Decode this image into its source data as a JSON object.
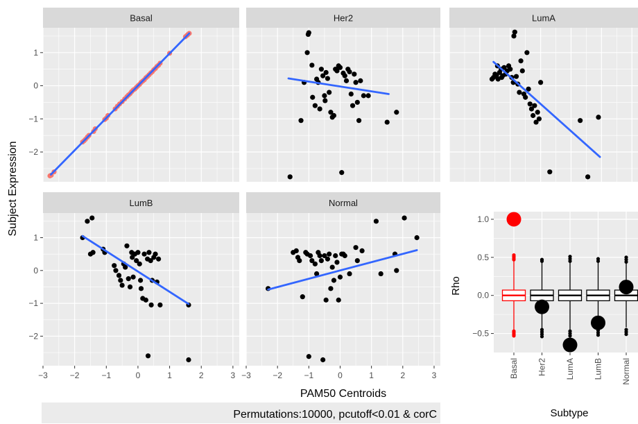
{
  "figure": {
    "y_label": "Subject Expression",
    "x_label": "PAM50 Centroids",
    "caption": "Permutations:10000, pcutoff<0.01 & corC"
  },
  "colors": {
    "panel_bg": "#EBEBEB",
    "strip_bg": "#D9D9D9",
    "grid": "#FFFFFF",
    "point": "#000000",
    "basal_point": "#F8766D",
    "fit_line": "#3366FF",
    "box_highlight": "#FF0000",
    "caption_bg": "#EBEBEB"
  },
  "chart_data": [
    {
      "type": "scatter",
      "facet": "Basal",
      "xlim": [
        -3,
        3.2
      ],
      "ylim": [
        -2.9,
        1.75
      ],
      "fit": [
        [
          -2.75,
          -2.68
        ],
        [
          1.62,
          1.58
        ]
      ],
      "points": [
        [
          -2.78,
          -2.72
        ],
        [
          -2.74,
          -2.7
        ],
        [
          -2.65,
          -2.6
        ],
        [
          -1.75,
          -1.7
        ],
        [
          -1.7,
          -1.66
        ],
        [
          -1.66,
          -1.62
        ],
        [
          -1.6,
          -1.55
        ],
        [
          -1.55,
          -1.5
        ],
        [
          -1.4,
          -1.38
        ],
        [
          -1.35,
          -1.3
        ],
        [
          -1.05,
          -1.02
        ],
        [
          -1.0,
          -0.98
        ],
        [
          -0.95,
          -0.9
        ],
        [
          -0.72,
          -0.7
        ],
        [
          -0.65,
          -0.62
        ],
        [
          -0.58,
          -0.55
        ],
        [
          -0.5,
          -0.48
        ],
        [
          -0.42,
          -0.4
        ],
        [
          -0.35,
          -0.33
        ],
        [
          -0.3,
          -0.28
        ],
        [
          -0.25,
          -0.24
        ],
        [
          -0.2,
          -0.18
        ],
        [
          -0.15,
          -0.13
        ],
        [
          -0.1,
          -0.1
        ],
        [
          -0.05,
          -0.05
        ],
        [
          0.0,
          0.0
        ],
        [
          0.05,
          0.04
        ],
        [
          0.1,
          0.1
        ],
        [
          0.15,
          0.14
        ],
        [
          0.2,
          0.18
        ],
        [
          0.25,
          0.24
        ],
        [
          0.3,
          0.28
        ],
        [
          0.35,
          0.33
        ],
        [
          0.4,
          0.38
        ],
        [
          0.45,
          0.42
        ],
        [
          0.5,
          0.48
        ],
        [
          0.55,
          0.52
        ],
        [
          0.6,
          0.58
        ],
        [
          0.65,
          0.62
        ],
        [
          0.7,
          0.68
        ],
        [
          1.0,
          0.98
        ],
        [
          1.5,
          1.48
        ],
        [
          1.55,
          1.52
        ],
        [
          1.58,
          1.55
        ],
        [
          1.62,
          1.58
        ]
      ]
    },
    {
      "type": "scatter",
      "facet": "Her2",
      "xlim": [
        -3,
        3.2
      ],
      "ylim": [
        -2.9,
        1.75
      ],
      "fit": [
        [
          -1.65,
          0.22
        ],
        [
          1.55,
          -0.25
        ]
      ],
      "points": [
        [
          -1.6,
          -2.75
        ],
        [
          -1.25,
          -1.05
        ],
        [
          -1.15,
          0.1
        ],
        [
          -1.05,
          1.0
        ],
        [
          -1.02,
          1.55
        ],
        [
          -1.0,
          1.6
        ],
        [
          -0.9,
          0.62
        ],
        [
          -0.88,
          -0.35
        ],
        [
          -0.8,
          -0.6
        ],
        [
          -0.75,
          0.2
        ],
        [
          -0.7,
          0.1
        ],
        [
          -0.65,
          -0.7
        ],
        [
          -0.6,
          0.5
        ],
        [
          -0.55,
          0.3
        ],
        [
          -0.5,
          -0.3
        ],
        [
          -0.48,
          -0.45
        ],
        [
          -0.45,
          0.4
        ],
        [
          -0.4,
          0.22
        ],
        [
          -0.35,
          -0.2
        ],
        [
          -0.3,
          -0.8
        ],
        [
          -0.25,
          -0.95
        ],
        [
          -0.2,
          -0.9
        ],
        [
          -0.15,
          0.5
        ],
        [
          -0.1,
          0.45
        ],
        [
          -0.05,
          0.6
        ],
        [
          0.0,
          0.55
        ],
        [
          0.05,
          -2.62
        ],
        [
          0.1,
          0.38
        ],
        [
          0.15,
          0.3
        ],
        [
          0.2,
          0.15
        ],
        [
          0.25,
          0.5
        ],
        [
          0.3,
          0.42
        ],
        [
          0.35,
          -0.25
        ],
        [
          0.4,
          -0.6
        ],
        [
          0.45,
          0.35
        ],
        [
          0.5,
          0.1
        ],
        [
          0.55,
          -0.5
        ],
        [
          0.6,
          -1.05
        ],
        [
          0.65,
          0.15
        ],
        [
          0.75,
          -0.3
        ],
        [
          0.9,
          -0.3
        ],
        [
          1.5,
          -1.1
        ],
        [
          1.8,
          -0.8
        ]
      ]
    },
    {
      "type": "scatter",
      "facet": "LumA",
      "xlim": [
        -3,
        3.2
      ],
      "ylim": [
        -2.9,
        1.75
      ],
      "fit": [
        [
          -1.55,
          0.72
        ],
        [
          1.95,
          -2.15
        ]
      ],
      "points": [
        [
          -1.6,
          0.2
        ],
        [
          -1.55,
          0.25
        ],
        [
          -1.5,
          0.35
        ],
        [
          -1.45,
          0.3
        ],
        [
          -1.42,
          0.6
        ],
        [
          -1.4,
          0.2
        ],
        [
          -1.35,
          0.4
        ],
        [
          -1.3,
          0.5
        ],
        [
          -1.28,
          0.25
        ],
        [
          -1.25,
          0.3
        ],
        [
          -1.2,
          0.55
        ],
        [
          -1.15,
          0.35
        ],
        [
          -1.1,
          0.45
        ],
        [
          -1.05,
          0.6
        ],
        [
          -1.0,
          0.5
        ],
        [
          -0.95,
          0.25
        ],
        [
          -0.9,
          0.1
        ],
        [
          -0.88,
          1.5
        ],
        [
          -0.85,
          1.62
        ],
        [
          -0.8,
          0.28
        ],
        [
          -0.75,
          0.05
        ],
        [
          -0.7,
          -0.2
        ],
        [
          -0.65,
          0.75
        ],
        [
          -0.6,
          0.45
        ],
        [
          -0.55,
          -0.25
        ],
        [
          -0.5,
          -0.35
        ],
        [
          -0.45,
          1.0
        ],
        [
          -0.4,
          -0.1
        ],
        [
          -0.35,
          -0.55
        ],
        [
          -0.3,
          -0.7
        ],
        [
          -0.25,
          -0.9
        ],
        [
          -0.2,
          -0.6
        ],
        [
          -0.15,
          -1.1
        ],
        [
          -0.1,
          -0.8
        ],
        [
          -0.05,
          -1.0
        ],
        [
          0.0,
          0.1
        ],
        [
          0.3,
          -2.6
        ],
        [
          1.3,
          -1.05
        ],
        [
          1.55,
          -2.75
        ],
        [
          1.9,
          -0.95
        ]
      ]
    },
    {
      "type": "scatter",
      "facet": "LumB",
      "xlim": [
        -3,
        3.2
      ],
      "ylim": [
        -2.9,
        1.75
      ],
      "fit": [
        [
          -1.75,
          1.05
        ],
        [
          1.6,
          -1.02
        ]
      ],
      "points": [
        [
          -1.75,
          1.0
        ],
        [
          -1.6,
          1.5
        ],
        [
          -1.5,
          0.5
        ],
        [
          -1.45,
          1.6
        ],
        [
          -1.42,
          0.55
        ],
        [
          -1.1,
          0.65
        ],
        [
          -1.05,
          0.55
        ],
        [
          -0.75,
          0.15
        ],
        [
          -0.7,
          0.0
        ],
        [
          -0.6,
          -0.15
        ],
        [
          -0.55,
          -0.3
        ],
        [
          -0.5,
          -0.45
        ],
        [
          -0.45,
          0.2
        ],
        [
          -0.4,
          0.1
        ],
        [
          -0.35,
          0.75
        ],
        [
          -0.3,
          -0.25
        ],
        [
          -0.25,
          -0.5
        ],
        [
          -0.2,
          0.55
        ],
        [
          -0.18,
          0.4
        ],
        [
          -0.15,
          -0.2
        ],
        [
          -0.1,
          0.5
        ],
        [
          -0.05,
          0.3
        ],
        [
          0.0,
          0.55
        ],
        [
          0.05,
          0.2
        ],
        [
          0.08,
          -0.3
        ],
        [
          0.1,
          -0.55
        ],
        [
          0.15,
          -0.85
        ],
        [
          0.2,
          0.5
        ],
        [
          0.25,
          -0.9
        ],
        [
          0.3,
          0.35
        ],
        [
          0.32,
          -2.6
        ],
        [
          0.35,
          0.55
        ],
        [
          0.4,
          0.3
        ],
        [
          0.42,
          -1.05
        ],
        [
          0.45,
          -0.3
        ],
        [
          0.5,
          0.4
        ],
        [
          0.55,
          0.5
        ],
        [
          0.6,
          -0.35
        ],
        [
          0.65,
          0.35
        ],
        [
          0.7,
          -1.05
        ],
        [
          1.6,
          -1.05
        ],
        [
          1.6,
          -2.72
        ]
      ]
    },
    {
      "type": "scatter",
      "facet": "Normal",
      "xlim": [
        -3,
        3.2
      ],
      "ylim": [
        -2.9,
        1.75
      ],
      "fit": [
        [
          -2.3,
          -0.58
        ],
        [
          2.45,
          0.62
        ]
      ],
      "points": [
        [
          -2.3,
          -0.55
        ],
        [
          -1.5,
          0.55
        ],
        [
          -1.4,
          0.6
        ],
        [
          -1.35,
          0.4
        ],
        [
          -1.3,
          0.3
        ],
        [
          -1.2,
          -0.8
        ],
        [
          -1.1,
          0.55
        ],
        [
          -1.05,
          0.5
        ],
        [
          -1.0,
          -2.62
        ],
        [
          -0.95,
          0.45
        ],
        [
          -0.9,
          0.3
        ],
        [
          -0.8,
          0.2
        ],
        [
          -0.75,
          -0.1
        ],
        [
          -0.7,
          0.55
        ],
        [
          -0.65,
          0.45
        ],
        [
          -0.6,
          0.3
        ],
        [
          -0.55,
          -2.72
        ],
        [
          -0.5,
          0.45
        ],
        [
          -0.45,
          -0.9
        ],
        [
          -0.4,
          0.35
        ],
        [
          -0.35,
          0.5
        ],
        [
          -0.3,
          -0.55
        ],
        [
          -0.25,
          0.1
        ],
        [
          -0.2,
          -0.3
        ],
        [
          -0.15,
          0.45
        ],
        [
          -0.1,
          0.25
        ],
        [
          -0.05,
          -0.9
        ],
        [
          0.0,
          -0.2
        ],
        [
          0.05,
          0.5
        ],
        [
          0.1,
          0.5
        ],
        [
          0.15,
          0.45
        ],
        [
          0.3,
          -0.1
        ],
        [
          0.5,
          0.7
        ],
        [
          0.55,
          0.3
        ],
        [
          0.7,
          0.6
        ],
        [
          1.15,
          1.5
        ],
        [
          1.3,
          -0.1
        ],
        [
          1.75,
          0.5
        ],
        [
          1.8,
          0.0
        ],
        [
          2.05,
          1.6
        ],
        [
          2.45,
          1.0
        ]
      ]
    },
    {
      "type": "box",
      "x_label": "Subtype",
      "y_label": "Rho",
      "ylim": [
        -0.75,
        1.1
      ],
      "categories": [
        "Basal",
        "Her2",
        "LumA",
        "LumB",
        "Normal"
      ],
      "observed": [
        1.0,
        -0.15,
        -0.65,
        -0.36,
        0.11
      ],
      "highlight_category": "Basal",
      "boxes": [
        {
          "q1": -0.07,
          "median": 0.0,
          "q3": 0.07,
          "whisker_low": -0.45,
          "whisker_high": 0.45,
          "outliers": [
            -0.47,
            -0.49,
            -0.51,
            -0.53,
            0.47,
            0.49,
            0.51,
            0.53
          ]
        },
        {
          "q1": -0.07,
          "median": 0.0,
          "q3": 0.07,
          "whisker_low": -0.43,
          "whisker_high": 0.43,
          "outliers": [
            -0.45,
            -0.48,
            -0.51,
            -0.54,
            0.45,
            0.47
          ]
        },
        {
          "q1": -0.07,
          "median": 0.0,
          "q3": 0.07,
          "whisker_low": -0.45,
          "whisker_high": 0.43,
          "outliers": [
            -0.47,
            -0.5,
            -0.53,
            0.45,
            0.48,
            0.51
          ]
        },
        {
          "q1": -0.07,
          "median": 0.0,
          "q3": 0.07,
          "whisker_low": -0.44,
          "whisker_high": 0.43,
          "outliers": [
            -0.46,
            -0.49,
            -0.52,
            0.45,
            0.48
          ]
        },
        {
          "q1": -0.07,
          "median": 0.0,
          "q3": 0.07,
          "whisker_low": -0.42,
          "whisker_high": 0.42,
          "outliers": [
            -0.45,
            -0.48,
            -0.51,
            0.44,
            0.47,
            0.5
          ]
        }
      ]
    }
  ]
}
